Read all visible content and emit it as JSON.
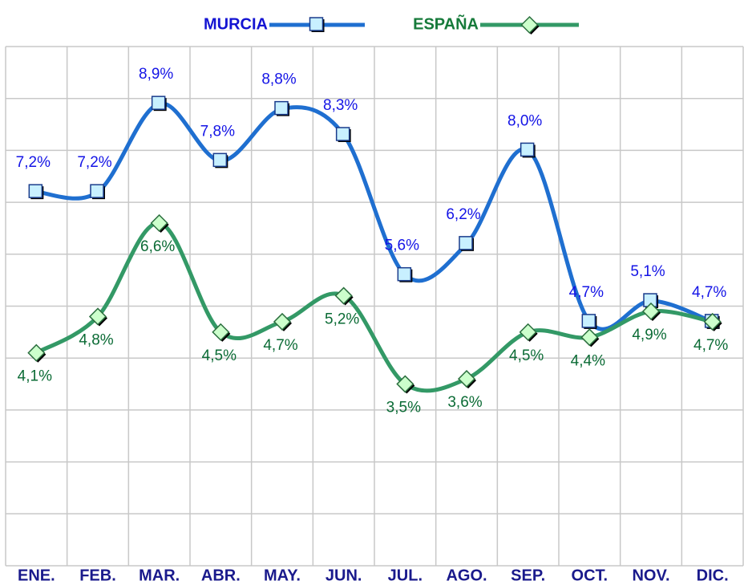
{
  "chart_data": {
    "type": "line",
    "categories": [
      "ENE.",
      "FEB.",
      "MAR.",
      "ABR.",
      "MAY.",
      "JUN.",
      "JUL.",
      "AGO.",
      "SEP.",
      "OCT.",
      "NOV.",
      "DIC."
    ],
    "series": [
      {
        "name": "MURCIA",
        "color": "#1f6fd0",
        "values": [
          7.2,
          7.2,
          8.9,
          7.8,
          8.8,
          8.3,
          5.6,
          6.2,
          8.0,
          4.7,
          5.1,
          4.7
        ],
        "value_labels": [
          "7,2%",
          "7,2%",
          "8,9%",
          "7,8%",
          "8,8%",
          "8,3%",
          "5,6%",
          "6,2%",
          "8,0%",
          "4,7%",
          "5,1%",
          "4,7%"
        ]
      },
      {
        "name": "ESPAÑA",
        "color": "#339966",
        "values": [
          4.1,
          4.8,
          6.6,
          4.5,
          4.7,
          5.2,
          3.5,
          3.6,
          4.5,
          4.4,
          4.9,
          4.7
        ],
        "value_labels": [
          "4,1%",
          "4,8%",
          "6,6%",
          "4,5%",
          "4,7%",
          "5,2%",
          "3,5%",
          "3,6%",
          "4,5%",
          "4,4%",
          "4,9%",
          "4,7%"
        ]
      }
    ],
    "ylim": [
      0,
      10
    ],
    "yticks": [
      0,
      1,
      2,
      3,
      4,
      5,
      6,
      7,
      8,
      9,
      10
    ],
    "grid": true,
    "legend": "top"
  }
}
